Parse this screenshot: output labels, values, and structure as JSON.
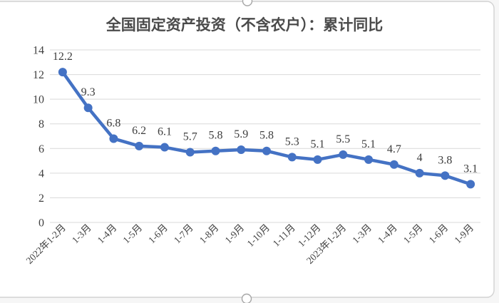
{
  "chart_title": "全国固定资产投资（不含农户）：累计同比",
  "chart_data": {
    "type": "line",
    "title": "全国固定资产投资（不含农户）：累计同比",
    "categories": [
      "2022年1-2月",
      "1-3月",
      "1-4月",
      "1-5月",
      "1-6月",
      "1-7月",
      "1-8月",
      "1-9月",
      "1-10月",
      "1-11月",
      "1-12月",
      "2023年1-2月",
      "1-3月",
      "1-4月",
      "1-5月",
      "1-6月",
      "1-9月"
    ],
    "values": [
      12.2,
      9.3,
      6.8,
      6.2,
      6.1,
      5.7,
      5.8,
      5.9,
      5.8,
      5.3,
      5.1,
      5.5,
      5.1,
      4.7,
      4,
      3.8,
      3.1
    ],
    "data_labels": [
      "12.2",
      "9.3",
      "6.8",
      "6.2",
      "6.1",
      "5.7",
      "5.8",
      "5.9",
      "5.8",
      "5.3",
      "5.1",
      "5.5",
      "5.1",
      "4.7",
      "4",
      "3.8",
      "3.1"
    ],
    "xlabel": "",
    "ylabel": "",
    "ylim": [
      0,
      14
    ],
    "yticks": [
      0,
      2,
      4,
      6,
      8,
      10,
      12,
      14
    ],
    "grid": true,
    "legend": "none",
    "marker": "circle",
    "data_label_position": "above"
  },
  "colors": {
    "series": "#4472C4",
    "gridline": "#D9D9D9",
    "frame_border": "#D2D2D2",
    "tick_text": "#404040",
    "title_text": "#4A4A4A"
  }
}
